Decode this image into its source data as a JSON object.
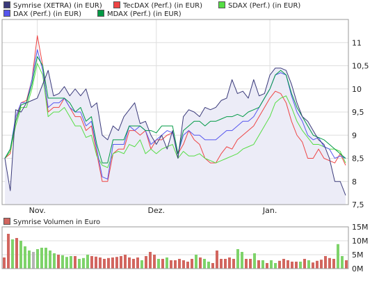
{
  "colors": {
    "background": "#ffffff",
    "plot_border": "#9a9a9a",
    "grid": "#dedede",
    "area_fill": "#ececf7",
    "volume_up": "#7ed36a",
    "volume_down": "#d2665f",
    "volume_neutral": "#b4b4b4"
  },
  "chart_data": [
    {
      "type": "line",
      "legend": [
        {
          "label": "Symrise (XETRA) (in EUR)",
          "color": "#3a3a7a"
        },
        {
          "label": "TecDAX (Perf.) (in EUR)",
          "color": "#ee4444"
        },
        {
          "label": "SDAX (Perf.) (in EUR)",
          "color": "#55dd44"
        },
        {
          "label": "DAX (Perf.) (in EUR)",
          "color": "#5555ee"
        },
        {
          "label": "MDAX (Perf.) (in EUR)",
          "color": "#009944"
        }
      ],
      "legend_position": "top-left",
      "x_ticks": [
        "Nov.",
        "Dez.",
        "Jan."
      ],
      "x_tick_index": [
        6,
        28,
        49
      ],
      "ylim": [
        7.5,
        11.5
      ],
      "y_ticks": [
        "7,5",
        "8",
        "8,5",
        "9",
        "9,5",
        "10",
        "10,5",
        "11"
      ],
      "y_tick_values": [
        7.5,
        8,
        8.5,
        9,
        9.5,
        10,
        10.5,
        11
      ],
      "grid": true,
      "series": [
        {
          "name": "Symrise (XETRA) (in EUR)",
          "color": "#3a3a7a",
          "area": true,
          "values": [
            8.5,
            7.8,
            9.55,
            9.5,
            9.7,
            9.75,
            9.8,
            10.1,
            10.4,
            9.85,
            9.9,
            10.05,
            9.85,
            10.0,
            9.85,
            10.0,
            9.6,
            9.7,
            9.0,
            8.9,
            9.2,
            9.1,
            9.4,
            9.55,
            9.7,
            9.25,
            9.3,
            9.0,
            8.8,
            9.0,
            8.7,
            9.1,
            8.5,
            9.4,
            9.55,
            9.5,
            9.4,
            9.6,
            9.55,
            9.6,
            9.75,
            9.8,
            10.2,
            9.9,
            9.95,
            9.8,
            10.2,
            9.85,
            9.9,
            10.3,
            10.45,
            10.45,
            10.4,
            10.1,
            9.7,
            9.4,
            9.3,
            9.1,
            8.9,
            8.8,
            8.5,
            8.0,
            8.0,
            7.7
          ]
        },
        {
          "name": "TecDAX (Perf.) (in EUR)",
          "color": "#ee4444",
          "values": [
            8.5,
            8.6,
            9.3,
            9.7,
            9.75,
            10.2,
            11.15,
            10.5,
            9.5,
            9.6,
            9.6,
            9.8,
            9.6,
            9.4,
            9.4,
            9.1,
            9.2,
            8.6,
            8.0,
            8.0,
            8.6,
            8.7,
            8.7,
            9.1,
            9.1,
            9.0,
            9.1,
            8.7,
            8.9,
            8.9,
            9.0,
            9.05,
            8.6,
            8.8,
            9.1,
            8.9,
            8.8,
            8.5,
            8.4,
            8.4,
            8.6,
            8.75,
            8.7,
            8.9,
            9.0,
            9.1,
            9.2,
            9.4,
            9.6,
            9.8,
            9.95,
            9.9,
            9.7,
            9.3,
            9.0,
            8.85,
            8.5,
            8.5,
            8.7,
            8.5,
            8.45,
            8.4,
            8.6,
            8.35
          ]
        },
        {
          "name": "SDAX (Perf.) (in EUR)",
          "color": "#55dd44",
          "values": [
            8.5,
            8.65,
            9.2,
            9.6,
            9.6,
            10.0,
            10.55,
            10.3,
            9.4,
            9.5,
            9.5,
            9.6,
            9.4,
            9.2,
            9.2,
            8.95,
            9.0,
            8.55,
            8.35,
            8.3,
            8.6,
            8.65,
            8.6,
            8.8,
            8.75,
            8.9,
            8.6,
            8.7,
            8.6,
            8.7,
            8.75,
            8.8,
            8.5,
            8.65,
            8.55,
            8.55,
            8.6,
            8.5,
            8.45,
            8.4,
            8.45,
            8.5,
            8.55,
            8.6,
            8.7,
            8.75,
            8.8,
            9.0,
            9.2,
            9.4,
            9.7,
            9.8,
            9.85,
            9.6,
            9.3,
            9.1,
            8.95,
            8.8,
            8.8,
            8.75,
            8.7,
            8.7,
            8.65,
            8.4
          ]
        },
        {
          "name": "DAX (Perf.) (in EUR)",
          "color": "#5555ee",
          "values": [
            8.5,
            8.7,
            9.4,
            9.7,
            9.7,
            10.2,
            10.85,
            10.4,
            9.6,
            9.7,
            9.7,
            9.8,
            9.6,
            9.5,
            9.5,
            9.2,
            9.3,
            8.7,
            8.1,
            8.05,
            8.8,
            8.8,
            8.8,
            9.2,
            9.1,
            9.2,
            9.1,
            8.8,
            8.9,
            9.0,
            9.1,
            9.05,
            8.6,
            9.0,
            9.1,
            9.0,
            9.0,
            8.9,
            8.9,
            8.9,
            9.0,
            9.1,
            9.1,
            9.2,
            9.3,
            9.3,
            9.4,
            9.6,
            9.8,
            10.0,
            10.3,
            10.35,
            10.3,
            9.85,
            9.5,
            9.3,
            9.0,
            8.9,
            8.95,
            8.75,
            8.7,
            8.5,
            8.55,
            8.5
          ]
        },
        {
          "name": "MDAX (Perf.) (in EUR)",
          "color": "#009944",
          "values": [
            8.5,
            8.7,
            9.3,
            9.65,
            9.7,
            10.1,
            10.7,
            10.5,
            9.8,
            9.8,
            9.8,
            9.8,
            9.7,
            9.5,
            9.6,
            9.3,
            9.4,
            8.8,
            8.4,
            8.4,
            8.9,
            8.9,
            8.9,
            9.2,
            9.2,
            9.2,
            9.1,
            9.1,
            9.05,
            9.2,
            9.2,
            9.2,
            8.6,
            9.1,
            9.2,
            9.3,
            9.3,
            9.2,
            9.3,
            9.3,
            9.35,
            9.4,
            9.4,
            9.45,
            9.4,
            9.5,
            9.55,
            9.6,
            9.8,
            10.0,
            10.3,
            10.4,
            10.3,
            9.9,
            9.6,
            9.4,
            9.2,
            9.0,
            8.95,
            8.9,
            8.8,
            8.7,
            8.6,
            8.5
          ]
        }
      ]
    },
    {
      "type": "bar",
      "legend": [
        {
          "label": "Symrise Volumen in Euro",
          "color": "#d2665f"
        }
      ],
      "ylim": [
        0,
        15
      ],
      "y_ticks": [
        "0M",
        "5M",
        "10M",
        "15M"
      ],
      "y_tick_values": [
        0,
        5,
        10,
        15
      ],
      "y_unit": "M",
      "bar_colors": [
        "down",
        "down",
        "up",
        "down",
        "up",
        "up",
        "up",
        "neutral",
        "up",
        "up",
        "up",
        "up",
        "up",
        "down",
        "up",
        "up",
        "up",
        "down",
        "up",
        "up",
        "up",
        "down",
        "down",
        "down",
        "down",
        "down",
        "down",
        "down",
        "down",
        "down",
        "down",
        "down",
        "down",
        "up",
        "down",
        "down",
        "down",
        "up",
        "down",
        "up",
        "down",
        "down",
        "down",
        "down",
        "down",
        "down",
        "up",
        "down",
        "up",
        "up",
        "down",
        "down",
        "down",
        "down",
        "down",
        "down",
        "up",
        "up",
        "down",
        "down",
        "up",
        "down",
        "up",
        "down",
        "up",
        "up",
        "down",
        "down",
        "down",
        "down",
        "down",
        "up",
        "down",
        "up",
        "down",
        "down",
        "down",
        "down",
        "down",
        "down",
        "up",
        "up",
        "down"
      ],
      "values": [
        4.0,
        12.5,
        10.5,
        11.0,
        10.0,
        8.0,
        6.5,
        6.0,
        7.0,
        7.5,
        7.5,
        6.5,
        5.5,
        5.0,
        4.8,
        4.2,
        4.5,
        4.5,
        3.5,
        3.8,
        5.0,
        4.5,
        4.3,
        4.0,
        3.5,
        3.8,
        4.0,
        4.2,
        4.5,
        5.0,
        4.0,
        3.5,
        4.0,
        3.0,
        4.5,
        6.0,
        5.0,
        3.5,
        3.5,
        4.0,
        3.0,
        3.0,
        3.5,
        3.0,
        2.5,
        3.5,
        5.0,
        4.0,
        3.5,
        2.5,
        2.0,
        6.5,
        3.5,
        3.5,
        4.0,
        3.5,
        7.0,
        6.0,
        3.5,
        3.5,
        5.5,
        3.0,
        3.0,
        2.0,
        3.0,
        2.0,
        2.8,
        3.5,
        3.0,
        2.5,
        2.5,
        2.5,
        3.5,
        3.0,
        2.2,
        2.8,
        3.2,
        4.5,
        3.8,
        3.5,
        8.8,
        4.5,
        3.0
      ]
    }
  ]
}
